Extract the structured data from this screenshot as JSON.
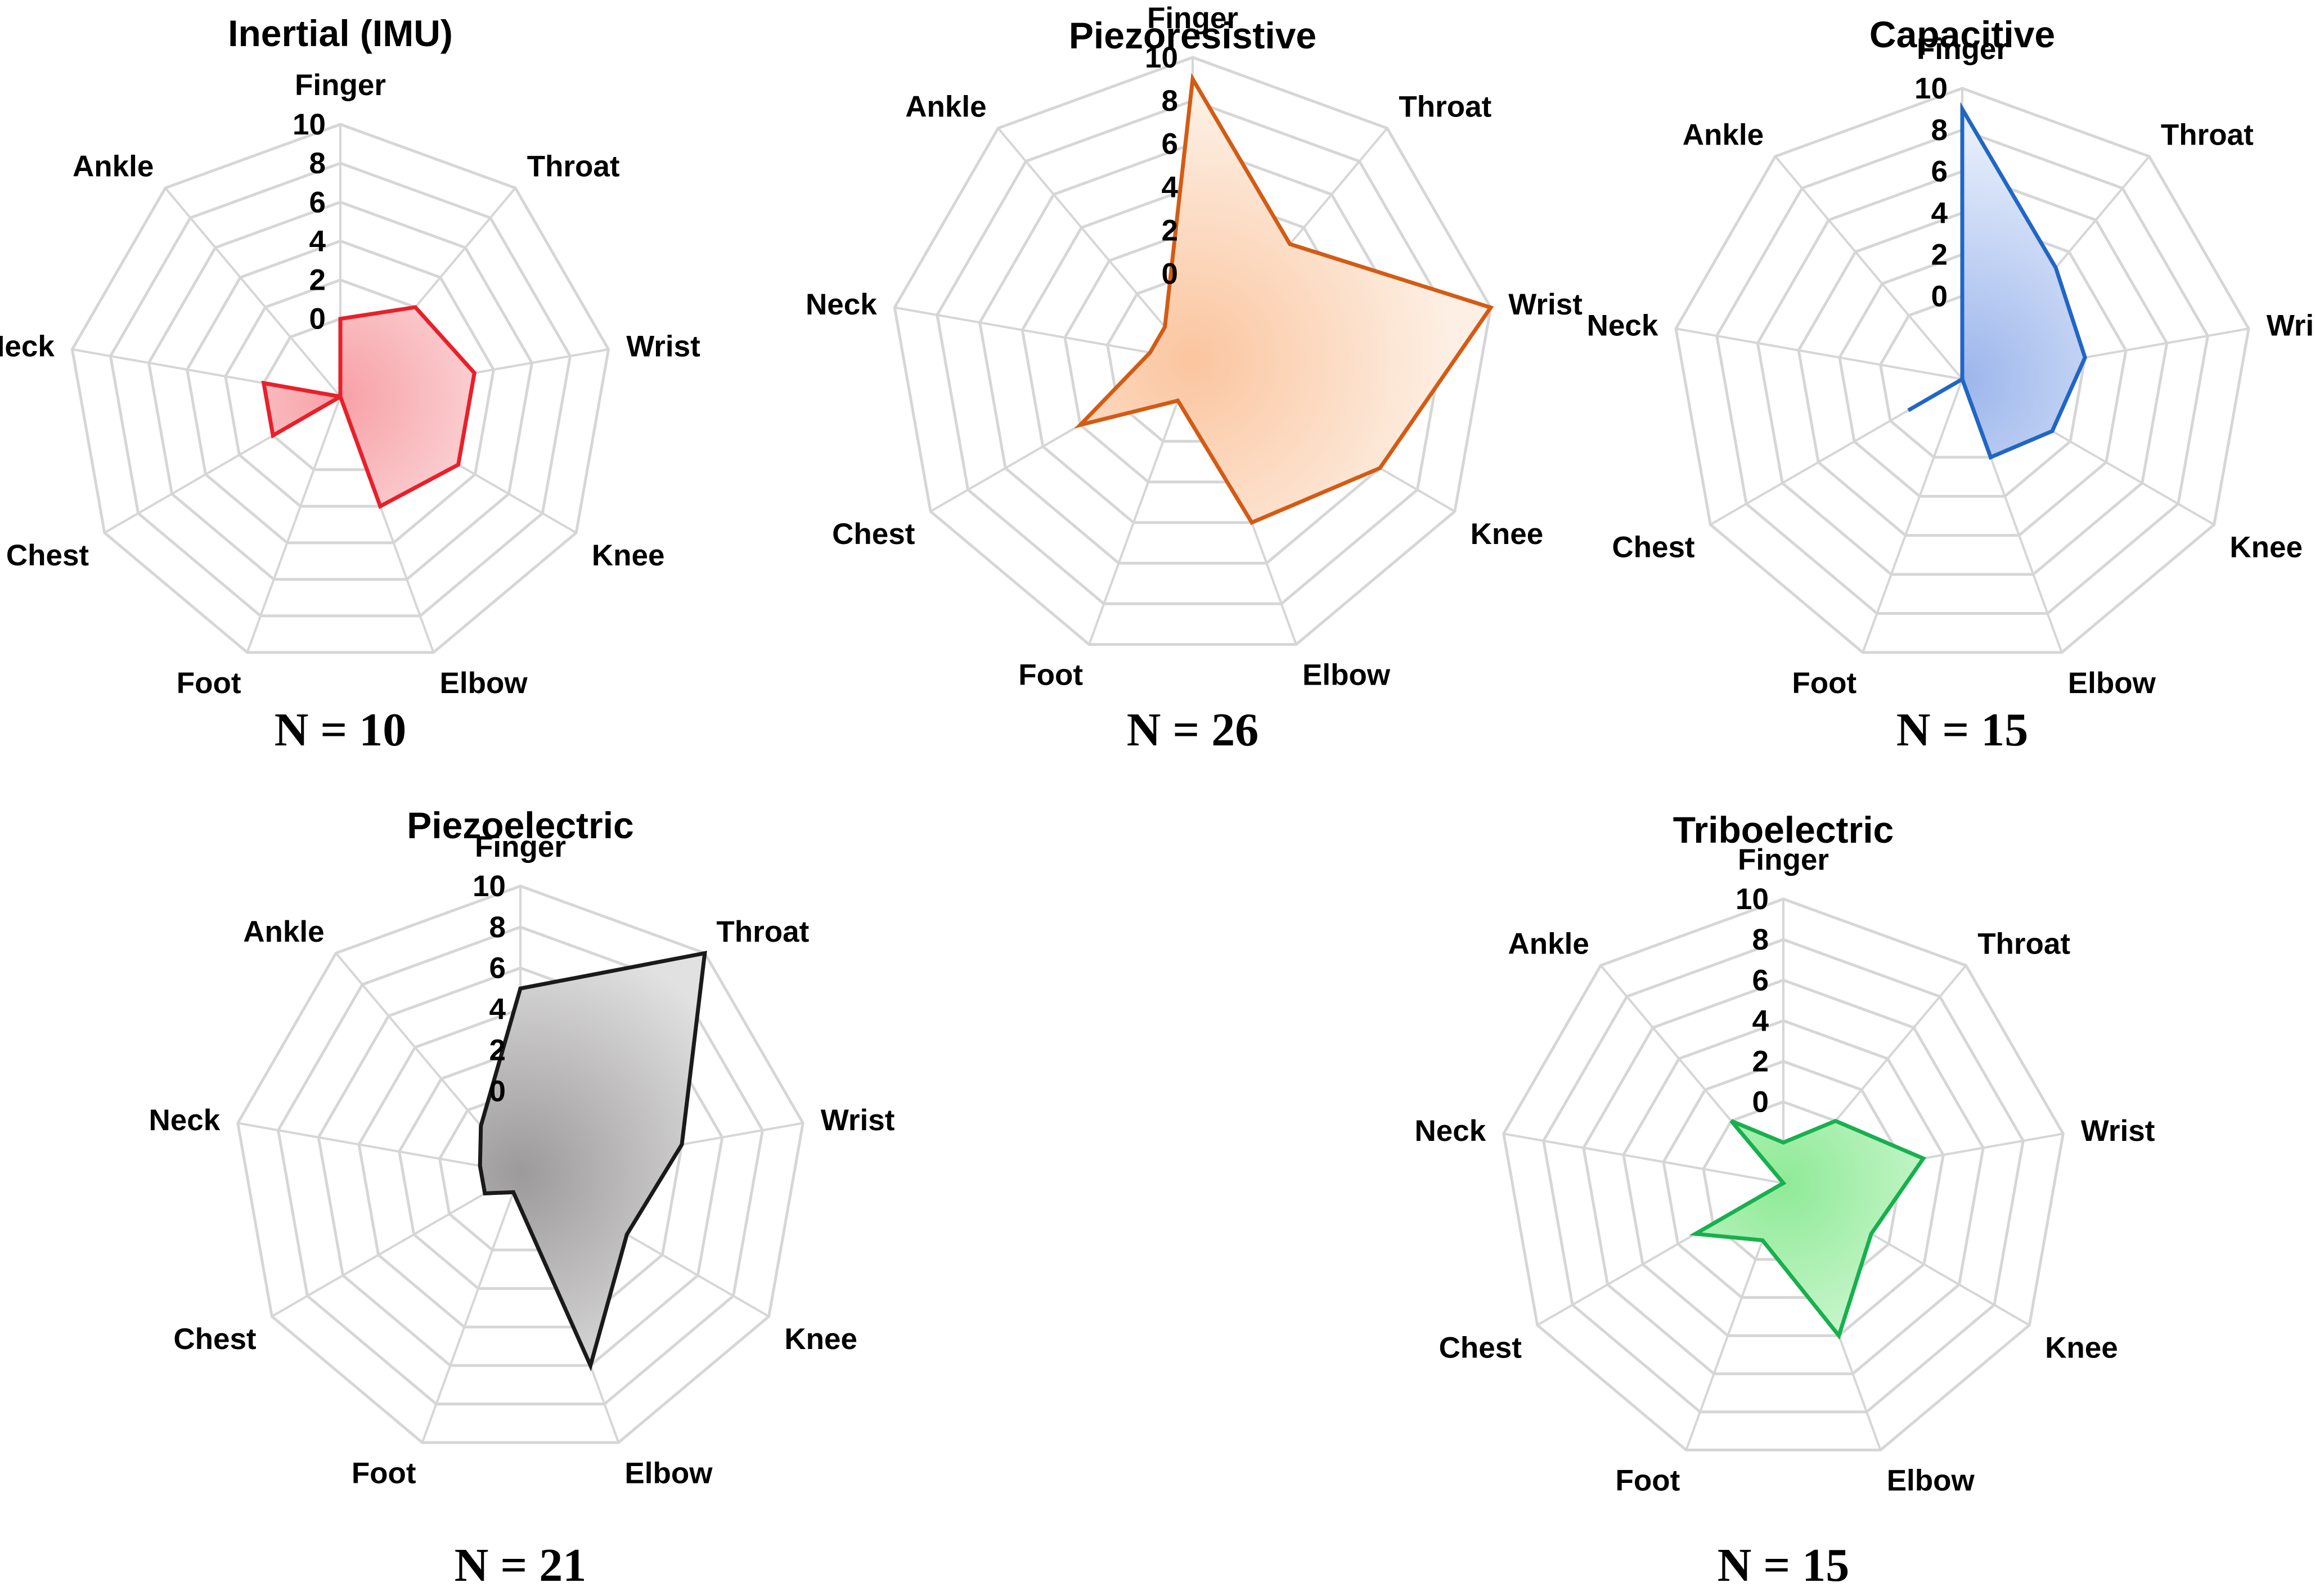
{
  "figure_title": "",
  "chart_data": [
    {
      "type": "radar",
      "title": "Inertial (IMU)",
      "n_label": "N = 10",
      "axes": [
        "Finger",
        "Throat",
        "Wrist",
        "Knee",
        "Elbow",
        "Foot",
        "Chest",
        "Neck",
        "Ankle"
      ],
      "ticks": [
        "0",
        "2",
        "4",
        "6",
        "8",
        "10"
      ],
      "range": [
        -4,
        10
      ],
      "series": [
        {
          "name": "Inertial (IMU)",
          "values": [
            0,
            2,
            3,
            3,
            2,
            -4,
            0,
            0,
            -4
          ]
        }
      ],
      "color": "#e8202a",
      "fill_inner": "#f7a1a6",
      "fill_outer": "#fdeced"
    },
    {
      "type": "radar",
      "title": "Piezoresistive",
      "n_label": "N = 26",
      "axes": [
        "Finger",
        "Throat",
        "Wrist",
        "Knee",
        "Elbow",
        "Foot",
        "Chest",
        "Neck",
        "Ankle"
      ],
      "ticks": [
        "0",
        "2",
        "4",
        "6",
        "8",
        "10"
      ],
      "range": [
        -4,
        10
      ],
      "series": [
        {
          "name": "Piezoresistive",
          "values": [
            9,
            3,
            10,
            6,
            4,
            -2,
            2,
            -2,
            -2
          ]
        }
      ],
      "color": "#d35b14",
      "fill_inner": "#fbc59f",
      "fill_outer": "#fdefe3"
    },
    {
      "type": "radar",
      "title": "Capacitive",
      "n_label": "N = 15",
      "axes": [
        "Finger",
        "Throat",
        "Wrist",
        "Knee",
        "Elbow",
        "Foot",
        "Chest",
        "Neck",
        "Ankle"
      ],
      "ticks": [
        "0",
        "2",
        "4",
        "6",
        "8",
        "10"
      ],
      "range": [
        -4,
        10
      ],
      "series": [
        {
          "name": "Capacitive",
          "values": [
            9,
            3,
            2,
            1,
            0,
            -4,
            -1,
            -4,
            -4
          ]
        }
      ],
      "color": "#2266c4",
      "fill_inner": "#9cb6ec",
      "fill_outer": "#e7eefb"
    },
    {
      "type": "radar",
      "title": "Piezoelectric",
      "n_label": "N = 21",
      "axes": [
        "Finger",
        "Throat",
        "Wrist",
        "Knee",
        "Elbow",
        "Foot",
        "Chest",
        "Neck",
        "Ankle"
      ],
      "ticks": [
        "0",
        "2",
        "4",
        "6",
        "8",
        "10"
      ],
      "range": [
        -4,
        10
      ],
      "series": [
        {
          "name": "Piezoelectric",
          "values": [
            5,
            10,
            4,
            2,
            6,
            -3,
            -2,
            -2,
            -1
          ]
        }
      ],
      "color": "#1a1a1a",
      "fill_inner": "#9c9a9a",
      "fill_outer": "#e2e1e1"
    },
    {
      "type": "radar",
      "title": "Triboelectric",
      "n_label": "N = 15",
      "axes": [
        "Finger",
        "Throat",
        "Wrist",
        "Knee",
        "Elbow",
        "Foot",
        "Chest",
        "Neck",
        "Ankle"
      ],
      "ticks": [
        "0",
        "2",
        "4",
        "6",
        "8",
        "10"
      ],
      "range": [
        -4,
        10
      ],
      "series": [
        {
          "name": "Triboelectric",
          "values": [
            -2,
            0,
            3,
            1,
            4,
            -1,
            1,
            -4,
            0
          ]
        }
      ],
      "color": "#18b04e",
      "fill_inner": "#8fea97",
      "fill_outer": "#e4fbe6"
    }
  ]
}
